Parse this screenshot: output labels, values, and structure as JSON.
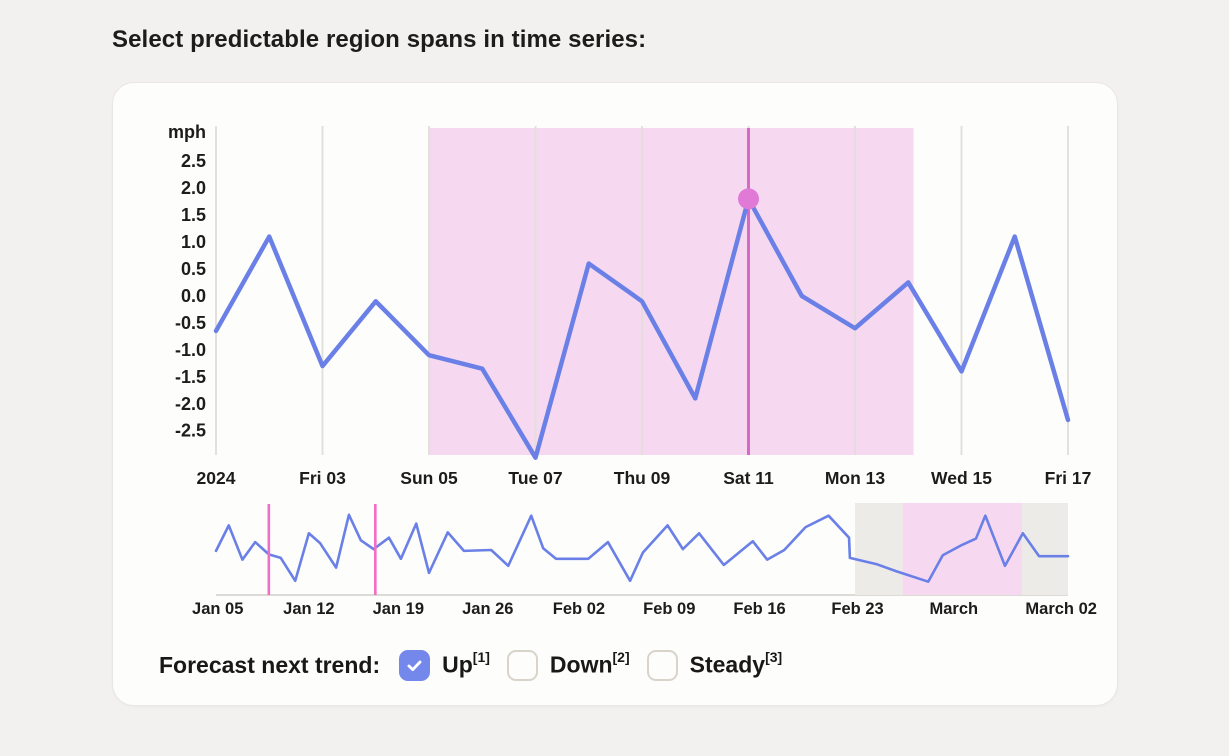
{
  "page_title": "Select predictable region spans in time series:",
  "colors": {
    "text": "#1d1c1a",
    "line_blue": "#6a80e7",
    "grid": "#e2dfd9",
    "grid_in_region": "#d3c8cd",
    "region_pink": "#f6d9f1",
    "marker_magenta": "#d669c6",
    "dot_fill": "#e07ad6",
    "overview_gray_band": "#edebe8",
    "overview_pink_band": "#f6d9f1",
    "overview_marker_magenta": "#f26dc4",
    "baseline": "#dddbd5",
    "checkbox_checked": "#7488eb",
    "checkbox_border": "#d8d4ca"
  },
  "chart_data": [
    {
      "id": "main",
      "type": "line",
      "ylabel": "mph",
      "ytick_labels": [
        "2.5",
        "2.0",
        "1.5",
        "1.0",
        "0.5",
        "0.0",
        "-0.5",
        "-1.0",
        "-1.5",
        "-2.0",
        "-2.5"
      ],
      "ytick_values": [
        2.5,
        2.0,
        1.5,
        1.0,
        0.5,
        0.0,
        -0.5,
        -1.0,
        -1.5,
        -2.0,
        -2.5
      ],
      "ylim": [
        -2.95,
        3.15
      ],
      "x_labels": [
        "2024",
        "Fri 03",
        "Sun 05",
        "Tue 07",
        "Thu 09",
        "Sat 11",
        "Mon 13",
        "Wed 15",
        "Fri 17"
      ],
      "x_label_indices": [
        0,
        2,
        4,
        6,
        8,
        10,
        12,
        14,
        16
      ],
      "values": [
        -0.65,
        1.1,
        -1.3,
        -0.1,
        -1.1,
        -1.35,
        -3.0,
        0.6,
        -0.1,
        -1.9,
        1.8,
        0.0,
        -0.6,
        0.25,
        -1.4,
        1.1,
        -2.3
      ],
      "grid": true,
      "legend": false,
      "highlight_point": {
        "index": 10,
        "value": 1.8,
        "x_label": "Sat 11"
      },
      "selected_region": {
        "start_index": 4,
        "end_index": 13.1
      }
    },
    {
      "id": "overview",
      "type": "line",
      "value_scale": [
        0,
        100
      ],
      "x_labels": [
        {
          "label": "Jan 05",
          "x": 0.002
        },
        {
          "label": "Jan 12",
          "x": 0.109
        },
        {
          "label": "Jan 19",
          "x": 0.214
        },
        {
          "label": "Jan 26",
          "x": 0.319
        },
        {
          "label": "Feb 02",
          "x": 0.426
        },
        {
          "label": "Feb 09",
          "x": 0.532
        },
        {
          "label": "Feb 16",
          "x": 0.638
        },
        {
          "label": "Feb 23",
          "x": 0.753
        },
        {
          "label": "March",
          "x": 0.866
        },
        {
          "label": "March 02",
          "x": 0.992
        }
      ],
      "points": [
        [
          0.0,
          49
        ],
        [
          0.015,
          78
        ],
        [
          0.031,
          39
        ],
        [
          0.046,
          59
        ],
        [
          0.062,
          45
        ],
        [
          0.076,
          41
        ],
        [
          0.093,
          15
        ],
        [
          0.109,
          69
        ],
        [
          0.122,
          58
        ],
        [
          0.141,
          30
        ],
        [
          0.156,
          90
        ],
        [
          0.17,
          61
        ],
        [
          0.185,
          51
        ],
        [
          0.203,
          64
        ],
        [
          0.217,
          40
        ],
        [
          0.235,
          80
        ],
        [
          0.25,
          24
        ],
        [
          0.272,
          70
        ],
        [
          0.291,
          49
        ],
        [
          0.323,
          50
        ],
        [
          0.343,
          32
        ],
        [
          0.37,
          89
        ],
        [
          0.384,
          52
        ],
        [
          0.399,
          40
        ],
        [
          0.437,
          40
        ],
        [
          0.46,
          59
        ],
        [
          0.486,
          15
        ],
        [
          0.501,
          47
        ],
        [
          0.53,
          78
        ],
        [
          0.548,
          51
        ],
        [
          0.567,
          69
        ],
        [
          0.596,
          33
        ],
        [
          0.63,
          60
        ],
        [
          0.647,
          39
        ],
        [
          0.667,
          50
        ],
        [
          0.692,
          76
        ],
        [
          0.719,
          89
        ],
        [
          0.743,
          64
        ],
        [
          0.744,
          41
        ],
        [
          0.775,
          34
        ],
        [
          0.798,
          26
        ],
        [
          0.836,
          14
        ],
        [
          0.853,
          44
        ],
        [
          0.874,
          55
        ],
        [
          0.892,
          63
        ],
        [
          0.903,
          89
        ],
        [
          0.926,
          32
        ],
        [
          0.947,
          69
        ],
        [
          0.966,
          43
        ],
        [
          1.0,
          43
        ]
      ],
      "gray_band": [
        0.75,
        1.0
      ],
      "pink_band": [
        0.806,
        0.946
      ],
      "viewport_markers": [
        0.062,
        0.187
      ]
    }
  ],
  "forecast": {
    "label": "Forecast next trend:",
    "options": [
      {
        "label": "Up",
        "ref": "[1]",
        "checked": true
      },
      {
        "label": "Down",
        "ref": "[2]",
        "checked": false
      },
      {
        "label": "Steady",
        "ref": "[3]",
        "checked": false
      }
    ]
  },
  "icons": {
    "check-icon": "✓"
  }
}
